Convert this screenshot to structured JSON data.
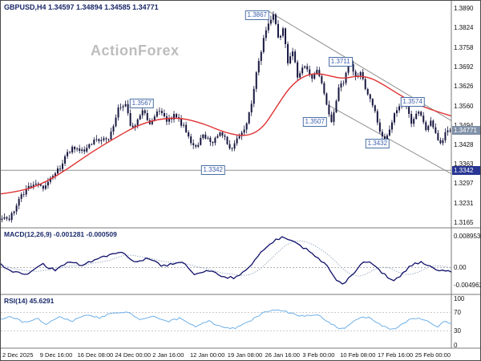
{
  "header": {
    "title": "GBPUSD,H4 1.34597 1.34894 1.34585 1.34771",
    "watermark": "ActionForex",
    "macd_label": "MACD(12,26,9) -0.001281 -0.000509",
    "rsi_label": "RSI(14) 45.6291",
    "price_tag": "1.34771",
    "support_tag": "1.3342"
  },
  "colors": {
    "candle": "#16163f",
    "ma": "#e03030",
    "trendline": "#8f8f8f",
    "separator": "#7a7a7a",
    "macd_main": "#10106a",
    "macd_signal": "#9fb0c8",
    "rsi": "#6fb0e8",
    "annotation": "#3c5fae",
    "annotation_border": "#4a6fa5",
    "price_tag_bg": "#8091a8",
    "support_tag_bg": "#283593",
    "title_text": "#1a2a6a",
    "watermark_text": "#bdbdbd",
    "axis_text": "#111111"
  },
  "time_axis": [
    "2 Dec 2025",
    "9 Dec 16:00",
    "16 Dec 08:00",
    "24 Dec 00:00",
    "2 Jan 16:00",
    "12 Jan 00:00",
    "19 Jan 08:00",
    "26 Jan 16:00",
    "3 Feb 00:00",
    "10 Feb 08:00",
    "17 Feb 16:00",
    "25 Feb 00:00"
  ],
  "chart_data": [
    {
      "type": "candlestick",
      "symbol": "GBPUSD",
      "timeframe": "H4",
      "ohlc_current": {
        "open": 1.34597,
        "high": 1.34894,
        "low": 1.34585,
        "close": 1.34771
      },
      "current_price": 1.34771,
      "support_level": 1.3342,
      "ylim": [
        1.3165,
        1.389
      ],
      "y_ticks": [
        "1.3890",
        "1.3824",
        "1.3758",
        "1.3692",
        "1.3626",
        "1.3560",
        "1.3494",
        "1.3428",
        "1.3363",
        "1.3297",
        "1.3231",
        "1.3165"
      ],
      "swing_labels": [
        {
          "text": "1.3867",
          "xf": 0.569,
          "price": 1.3867
        },
        {
          "text": "1.3711",
          "xf": 0.754,
          "price": 1.3711
        },
        {
          "text": "1.3574",
          "xf": 0.914,
          "price": 1.3574
        },
        {
          "text": "1.3567",
          "xf": 0.313,
          "price": 1.3567
        },
        {
          "text": "1.3507",
          "xf": 0.697,
          "price": 1.3507
        },
        {
          "text": "1.3432",
          "xf": 0.836,
          "price": 1.3432
        },
        {
          "text": "1.3342",
          "xf": 0.471,
          "price": 1.3342
        }
      ],
      "channel_upper": [
        [
          0.595,
          1.388
        ],
        [
          1.0,
          1.351
        ]
      ],
      "channel_lower": [
        [
          0.73,
          1.356
        ],
        [
          1.0,
          1.333
        ]
      ],
      "close_keypoints": [
        [
          0,
          1.3185
        ],
        [
          0.015,
          1.3165
        ],
        [
          0.04,
          1.3255
        ],
        [
          0.07,
          1.33
        ],
        [
          0.09,
          1.3285
        ],
        [
          0.12,
          1.333
        ],
        [
          0.155,
          1.342
        ],
        [
          0.175,
          1.34
        ],
        [
          0.21,
          1.3452
        ],
        [
          0.235,
          1.344
        ],
        [
          0.26,
          1.355
        ],
        [
          0.275,
          1.3567
        ],
        [
          0.29,
          1.348
        ],
        [
          0.315,
          1.3552
        ],
        [
          0.33,
          1.35
        ],
        [
          0.35,
          1.3545
        ],
        [
          0.37,
          1.3505
        ],
        [
          0.385,
          1.353
        ],
        [
          0.41,
          1.348
        ],
        [
          0.43,
          1.3415
        ],
        [
          0.45,
          1.3462
        ],
        [
          0.47,
          1.3438
        ],
        [
          0.49,
          1.3475
        ],
        [
          0.51,
          1.34
        ],
        [
          0.525,
          1.3448
        ],
        [
          0.54,
          1.347
        ],
        [
          0.555,
          1.356
        ],
        [
          0.57,
          1.369
        ],
        [
          0.585,
          1.38
        ],
        [
          0.6,
          1.3855
        ],
        [
          0.608,
          1.3867
        ],
        [
          0.618,
          1.378
        ],
        [
          0.628,
          1.383
        ],
        [
          0.638,
          1.37
        ],
        [
          0.648,
          1.3755
        ],
        [
          0.66,
          1.3645
        ],
        [
          0.675,
          1.37
        ],
        [
          0.69,
          1.3655
        ],
        [
          0.702,
          1.369
        ],
        [
          0.715,
          1.364
        ],
        [
          0.725,
          1.355
        ],
        [
          0.735,
          1.3507
        ],
        [
          0.75,
          1.361
        ],
        [
          0.765,
          1.3655
        ],
        [
          0.775,
          1.3711
        ],
        [
          0.79,
          1.365
        ],
        [
          0.802,
          1.368
        ],
        [
          0.815,
          1.36
        ],
        [
          0.83,
          1.355
        ],
        [
          0.845,
          1.347
        ],
        [
          0.855,
          1.3432
        ],
        [
          0.87,
          1.351
        ],
        [
          0.885,
          1.3558
        ],
        [
          0.9,
          1.3574
        ],
        [
          0.915,
          1.35
        ],
        [
          0.93,
          1.354
        ],
        [
          0.945,
          1.3478
        ],
        [
          0.957,
          1.3512
        ],
        [
          0.97,
          1.3452
        ],
        [
          0.98,
          1.3428
        ],
        [
          0.99,
          1.3468
        ],
        [
          1,
          1.34771
        ]
      ],
      "ma_keypoints": [
        [
          0,
          1.3262
        ],
        [
          0.05,
          1.3272
        ],
        [
          0.1,
          1.3302
        ],
        [
          0.15,
          1.3348
        ],
        [
          0.2,
          1.3402
        ],
        [
          0.25,
          1.3448
        ],
        [
          0.3,
          1.3492
        ],
        [
          0.35,
          1.3516
        ],
        [
          0.4,
          1.352
        ],
        [
          0.45,
          1.35
        ],
        [
          0.5,
          1.3468
        ],
        [
          0.545,
          1.3456
        ],
        [
          0.58,
          1.3482
        ],
        [
          0.61,
          1.3552
        ],
        [
          0.64,
          1.3622
        ],
        [
          0.67,
          1.366
        ],
        [
          0.7,
          1.3672
        ],
        [
          0.73,
          1.3662
        ],
        [
          0.76,
          1.3652
        ],
        [
          0.79,
          1.3662
        ],
        [
          0.82,
          1.3656
        ],
        [
          0.85,
          1.3632
        ],
        [
          0.88,
          1.3602
        ],
        [
          0.91,
          1.3576
        ],
        [
          0.94,
          1.3556
        ],
        [
          0.97,
          1.354
        ],
        [
          1,
          1.3526
        ]
      ]
    },
    {
      "type": "line",
      "name": "MACD",
      "params": "12,26,9",
      "current_main": -0.001281,
      "current_signal": -0.000509,
      "y_ticks": [
        "0.008953",
        "0.00",
        "-0.004962"
      ],
      "main_keypoints": [
        [
          0,
          0.0008
        ],
        [
          0.03,
          -0.0012
        ],
        [
          0.06,
          -0.0022
        ],
        [
          0.09,
          0.0012
        ],
        [
          0.12,
          -0.0008
        ],
        [
          0.15,
          0.0018
        ],
        [
          0.18,
          0.0008
        ],
        [
          0.21,
          0.0024
        ],
        [
          0.245,
          0.0036
        ],
        [
          0.27,
          0.0042
        ],
        [
          0.3,
          0.0016
        ],
        [
          0.33,
          0.0028
        ],
        [
          0.36,
          0.0004
        ],
        [
          0.4,
          0.0018
        ],
        [
          0.43,
          -0.0018
        ],
        [
          0.46,
          -0.0006
        ],
        [
          0.49,
          -0.0026
        ],
        [
          0.52,
          -0.003
        ],
        [
          0.55,
          0.0002
        ],
        [
          0.58,
          0.0046
        ],
        [
          0.61,
          0.008
        ],
        [
          0.63,
          0.0088
        ],
        [
          0.65,
          0.0074
        ],
        [
          0.68,
          0.005
        ],
        [
          0.705,
          0.0026
        ],
        [
          0.725,
          0.0006
        ],
        [
          0.745,
          -0.0034
        ],
        [
          0.76,
          -0.0048
        ],
        [
          0.775,
          -0.0028
        ],
        [
          0.8,
          0.0012
        ],
        [
          0.82,
          0.002
        ],
        [
          0.84,
          -0.0006
        ],
        [
          0.86,
          -0.003
        ],
        [
          0.875,
          -0.0038
        ],
        [
          0.89,
          -0.0018
        ],
        [
          0.91,
          0.0006
        ],
        [
          0.93,
          0.0016
        ],
        [
          0.95,
          0.0008
        ],
        [
          0.97,
          -0.0008
        ],
        [
          1,
          -0.001281
        ]
      ]
    },
    {
      "type": "line",
      "name": "RSI",
      "params": "14",
      "current": 45.6291,
      "levels": [
        70,
        30
      ],
      "y_ticks": [
        "100",
        "70",
        "30",
        "0"
      ],
      "keypoints": [
        [
          0,
          55
        ],
        [
          0.02,
          63
        ],
        [
          0.05,
          48
        ],
        [
          0.08,
          58
        ],
        [
          0.1,
          45
        ],
        [
          0.13,
          60
        ],
        [
          0.16,
          52
        ],
        [
          0.19,
          65
        ],
        [
          0.22,
          58
        ],
        [
          0.25,
          70
        ],
        [
          0.28,
          72
        ],
        [
          0.31,
          55
        ],
        [
          0.34,
          62
        ],
        [
          0.37,
          50
        ],
        [
          0.4,
          58
        ],
        [
          0.43,
          40
        ],
        [
          0.46,
          52
        ],
        [
          0.49,
          38
        ],
        [
          0.52,
          36
        ],
        [
          0.55,
          50
        ],
        [
          0.58,
          68
        ],
        [
          0.61,
          76
        ],
        [
          0.63,
          72
        ],
        [
          0.65,
          67
        ],
        [
          0.67,
          62
        ],
        [
          0.7,
          65
        ],
        [
          0.72,
          55
        ],
        [
          0.745,
          38
        ],
        [
          0.76,
          35
        ],
        [
          0.78,
          48
        ],
        [
          0.8,
          60
        ],
        [
          0.82,
          58
        ],
        [
          0.84,
          45
        ],
        [
          0.86,
          36
        ],
        [
          0.875,
          34
        ],
        [
          0.89,
          45
        ],
        [
          0.91,
          55
        ],
        [
          0.93,
          58
        ],
        [
          0.95,
          50
        ],
        [
          0.97,
          40
        ],
        [
          0.985,
          52
        ],
        [
          1,
          45.63
        ]
      ]
    }
  ]
}
